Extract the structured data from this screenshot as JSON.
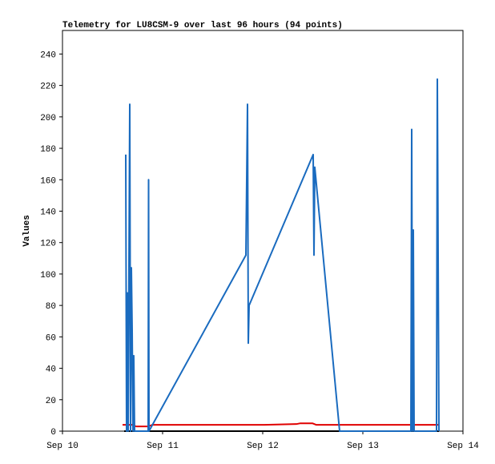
{
  "chart_data": {
    "type": "line",
    "title": "Telemetry for LU8CSM-9 over last 96 hours (94 points)",
    "y_label": "Values",
    "xlim": [
      0,
      4
    ],
    "xticks": [
      {
        "value": 0,
        "label": "Sep 10"
      },
      {
        "value": 1,
        "label": "Sep 11"
      },
      {
        "value": 2,
        "label": "Sep 12"
      },
      {
        "value": 3,
        "label": "Sep 13"
      },
      {
        "value": 4,
        "label": "Sep 14"
      }
    ],
    "ylim": [
      0,
      255
    ],
    "yticks": [
      0,
      20,
      40,
      60,
      80,
      100,
      120,
      140,
      160,
      180,
      200,
      220,
      240
    ],
    "series": [
      {
        "color": "#000000",
        "x": [
          0.616,
          3.76
        ],
        "values": [
          0,
          0
        ]
      },
      {
        "color": "#e00000",
        "x": [
          0.6,
          0.696,
          0.736,
          0.856,
          0.896,
          2.016,
          2.336,
          2.376,
          2.496,
          2.536,
          3.76
        ],
        "values": [
          4,
          4,
          3,
          3,
          4,
          4,
          4.5,
          5,
          5,
          4,
          4
        ]
      },
      {
        "color": "#1a6bbf",
        "x": [
          0.632,
          0.64,
          0.648,
          0.656,
          0.664,
          0.672,
          0.68,
          0.688,
          0.696,
          0.704,
          0.712,
          0.72,
          0.856,
          0.86,
          0.864,
          1.832,
          1.848,
          1.856,
          1.864,
          2.504,
          2.512,
          2.52,
          2.768,
          3.48,
          3.488,
          3.496,
          3.504,
          3.512,
          3.736,
          3.744,
          3.752,
          3.76
        ],
        "values": [
          176,
          0,
          88,
          0,
          104,
          208,
          0,
          104,
          64,
          0,
          48,
          0,
          0,
          160,
          0,
          112,
          208,
          56,
          80,
          176,
          112,
          168,
          0,
          0,
          192,
          0,
          128,
          0,
          0,
          224,
          112,
          0
        ]
      }
    ]
  }
}
